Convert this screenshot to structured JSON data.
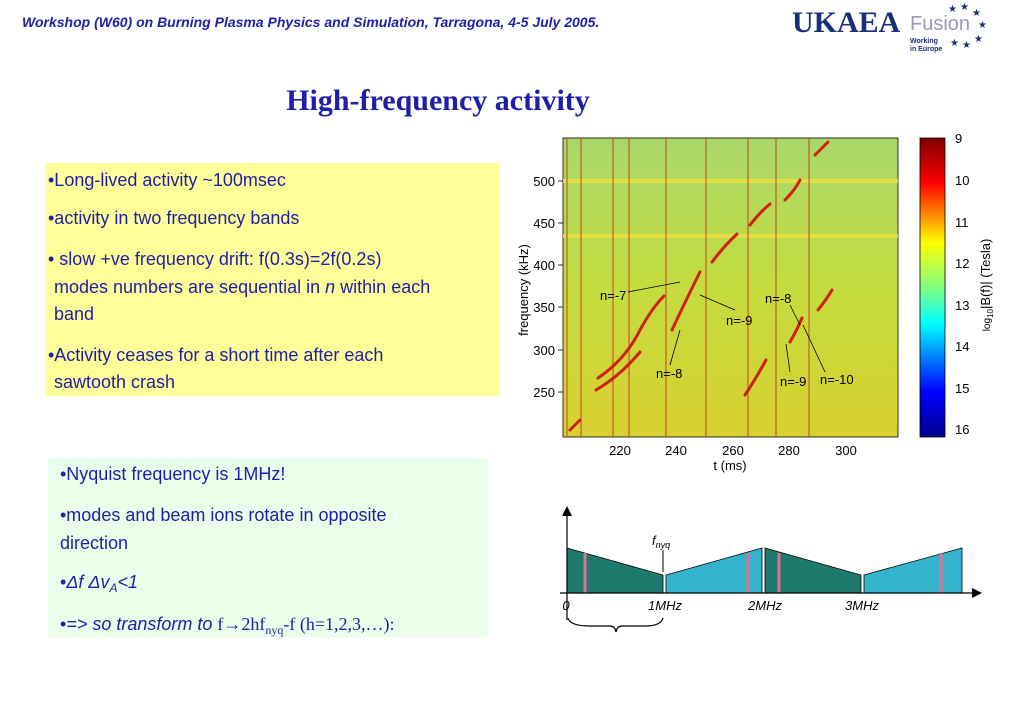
{
  "header": {
    "workshop": "Workshop (W60) on Burning Plasma Physics and Simulation, Tarragona, 4-5 July 2005.",
    "logo": "UKAEA",
    "fusion": "Fusion",
    "working": "Working",
    "in_europe": "in Europe"
  },
  "title": "High-frequency activity",
  "box1": {
    "lines": [
      [
        "•Long-lived activity  ~100msec"
      ],
      [
        "•activity in two frequency bands"
      ],
      [
        "• slow +ve frequency drift: f(0.3s)=2f(0.2s)"
      ],
      [
        "modes numbers are sequential in ",
        "n",
        " within each"
      ],
      [
        "band"
      ],
      [
        "•Activity ceases for a short time after each"
      ],
      [
        "sawtooth crash"
      ]
    ]
  },
  "spectrogram": {
    "ylabel": "frequency (kHz)",
    "xlabel": "t (ms)",
    "yticks": [
      "500",
      "450",
      "400",
      "350",
      "300",
      "250"
    ],
    "xticks": [
      "220",
      "240",
      "260",
      "280",
      "300"
    ],
    "colorbar_ticks": [
      "9",
      "10",
      "11",
      "12",
      "13",
      "14",
      "15",
      "16"
    ],
    "colorbar_label": [
      "log",
      "10",
      "|B(f)| (Tesla)"
    ],
    "annotations": [
      "n=-7",
      "n=-8",
      "n=-9",
      "n=-8",
      "n=-9",
      "n=-10"
    ]
  },
  "box2": {
    "lines": [
      [
        "•Nyquist frequency is 1MHz!"
      ],
      [
        "•modes and beam ions rotate in opposite"
      ],
      [
        "direction"
      ],
      [
        "•",
        "Δf ",
        "Δv",
        "A",
        "<1"
      ],
      [
        "•",
        "=> so transform to ",
        "f→2hf",
        "nyq",
        "-f (h=1,2,3,…):"
      ]
    ]
  },
  "diagram": {
    "fnyq": [
      "f",
      "nyq"
    ],
    "xlabels": [
      "0",
      "1MHz",
      "2MHz",
      "3MHz"
    ]
  }
}
